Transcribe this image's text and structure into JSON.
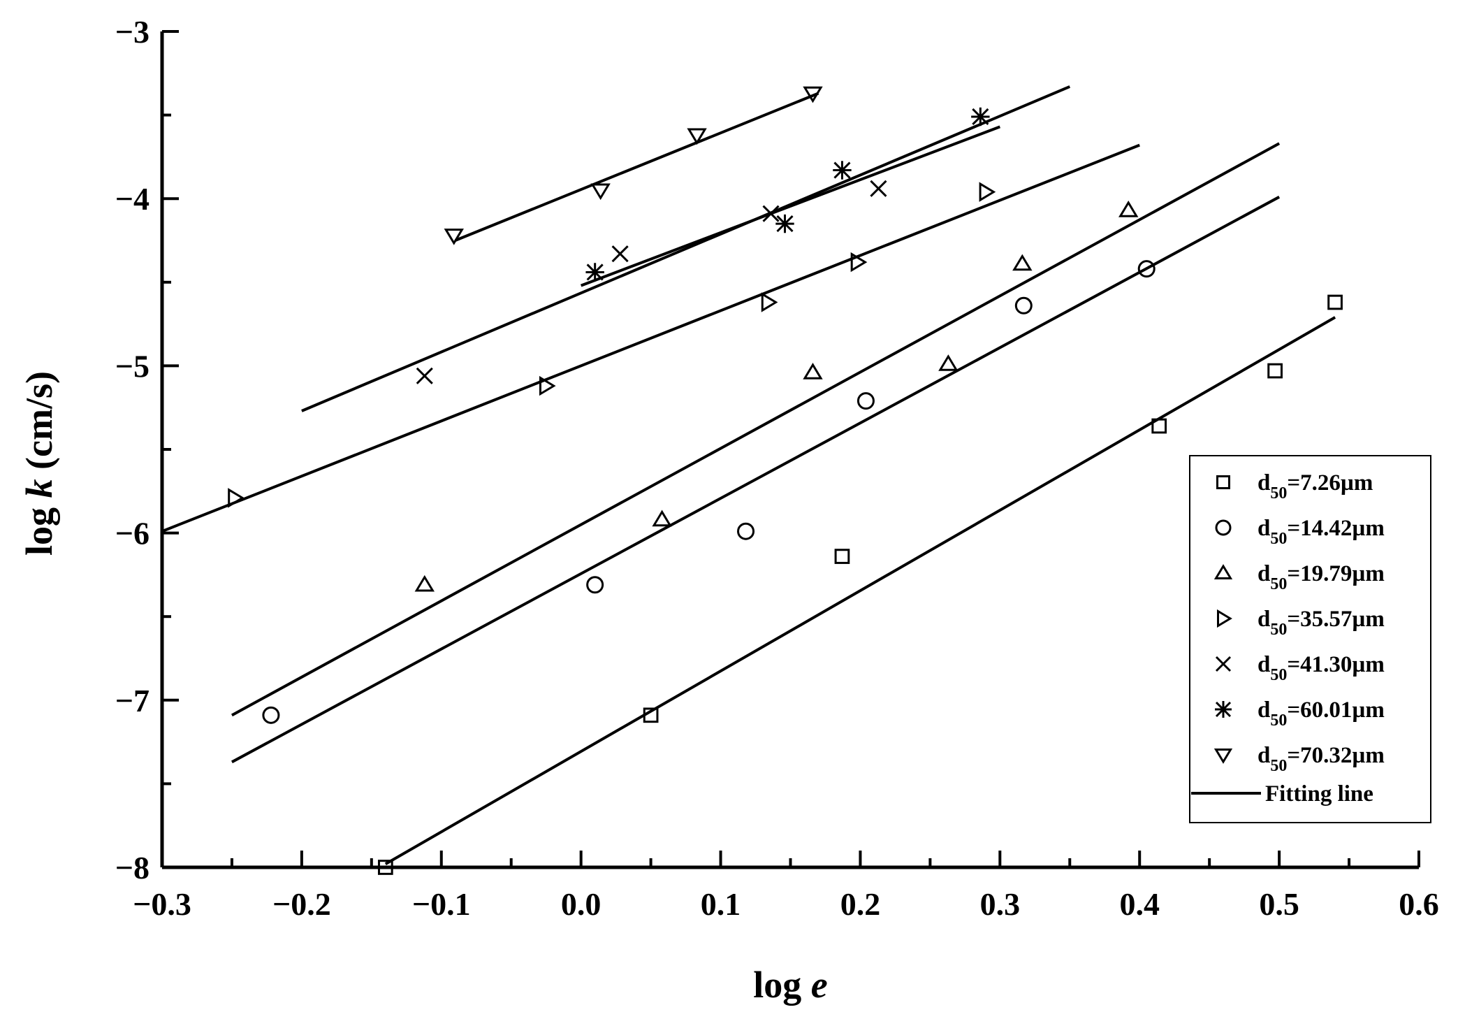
{
  "chart_data": {
    "type": "scatter",
    "title": "",
    "xlabel_prefix": "log ",
    "xlabel_var": "e",
    "ylabel_prefix": "log ",
    "ylabel_var": "k",
    "ylabel_suffix": " (cm/s)",
    "xlim": [
      -0.3,
      0.6
    ],
    "ylim": [
      -8,
      -3
    ],
    "x_ticks": [
      -0.3,
      -0.2,
      -0.1,
      0.0,
      0.1,
      0.2,
      0.3,
      0.4,
      0.5,
      0.6
    ],
    "x_tick_labels": [
      "−0.3",
      "−0.2",
      "−0.1",
      "0.0",
      "0.1",
      "0.2",
      "0.3",
      "0.4",
      "0.5",
      "0.6"
    ],
    "y_ticks": [
      -3,
      -4,
      -5,
      -6,
      -7,
      -8
    ],
    "y_tick_labels": [
      "−3",
      "−4",
      "−5",
      "−6",
      "−7",
      "−8"
    ],
    "legend_position": "bottom-right",
    "legend_prefix": "d",
    "legend_sub": "50",
    "series": [
      {
        "name": "d50=7.26µm",
        "label_value": "=7.26µm",
        "marker": "square",
        "points": [
          [
            -0.14,
            -8.0
          ],
          [
            0.05,
            -7.09
          ],
          [
            0.187,
            -6.14
          ],
          [
            0.414,
            -5.36
          ],
          [
            0.497,
            -5.03
          ],
          [
            0.54,
            -4.62
          ]
        ],
        "fit": [
          [
            -0.14,
            -7.98
          ],
          [
            0.54,
            -4.71
          ]
        ]
      },
      {
        "name": "d50=14.42µm",
        "label_value": "=14.42µm",
        "marker": "circle",
        "points": [
          [
            -0.222,
            -7.09
          ],
          [
            0.01,
            -6.31
          ],
          [
            0.118,
            -5.99
          ],
          [
            0.204,
            -5.21
          ],
          [
            0.317,
            -4.64
          ],
          [
            0.405,
            -4.42
          ]
        ],
        "fit": [
          [
            -0.25,
            -7.37
          ],
          [
            0.5,
            -3.99
          ]
        ]
      },
      {
        "name": "d50=19.79µm",
        "label_value": "=19.79µm",
        "marker": "triangle-up",
        "points": [
          [
            -0.112,
            -6.31
          ],
          [
            0.058,
            -5.92
          ],
          [
            0.166,
            -5.04
          ],
          [
            0.263,
            -4.99
          ],
          [
            0.316,
            -4.39
          ],
          [
            0.392,
            -4.07
          ]
        ],
        "fit": [
          [
            -0.25,
            -7.09
          ],
          [
            0.5,
            -3.67
          ]
        ]
      },
      {
        "name": "d50=35.57µm",
        "label_value": "=35.57µm",
        "marker": "triangle-right",
        "points": [
          [
            -0.248,
            -5.79
          ],
          [
            -0.025,
            -5.12
          ],
          [
            0.134,
            -4.62
          ],
          [
            0.198,
            -4.38
          ],
          [
            0.29,
            -3.96
          ]
        ],
        "fit": [
          [
            -0.3,
            -5.99
          ],
          [
            0.4,
            -3.68
          ]
        ]
      },
      {
        "name": "d50=41.30µm",
        "label_value": "=41.30µm",
        "marker": "x",
        "points": [
          [
            -0.112,
            -5.06
          ],
          [
            0.028,
            -4.33
          ],
          [
            0.136,
            -4.09
          ],
          [
            0.213,
            -3.94
          ]
        ],
        "fit": [
          [
            -0.2,
            -5.27
          ],
          [
            0.35,
            -3.33
          ]
        ]
      },
      {
        "name": "d50=60.01µm",
        "label_value": "=60.01µm",
        "marker": "asterisk",
        "points": [
          [
            0.01,
            -4.44
          ],
          [
            0.146,
            -4.15
          ],
          [
            0.187,
            -3.83
          ],
          [
            0.286,
            -3.51
          ]
        ],
        "fit": [
          [
            0.0,
            -4.52
          ],
          [
            0.3,
            -3.57
          ]
        ]
      },
      {
        "name": "d50=70.32µm",
        "label_value": "=70.32µm",
        "marker": "triangle-down",
        "points": [
          [
            -0.091,
            -4.22
          ],
          [
            0.014,
            -3.95
          ],
          [
            0.083,
            -3.62
          ],
          [
            0.166,
            -3.37
          ]
        ],
        "fit": [
          [
            -0.09,
            -4.25
          ],
          [
            0.17,
            -3.37
          ]
        ]
      }
    ],
    "fit_legend_label": "Fitting line"
  }
}
